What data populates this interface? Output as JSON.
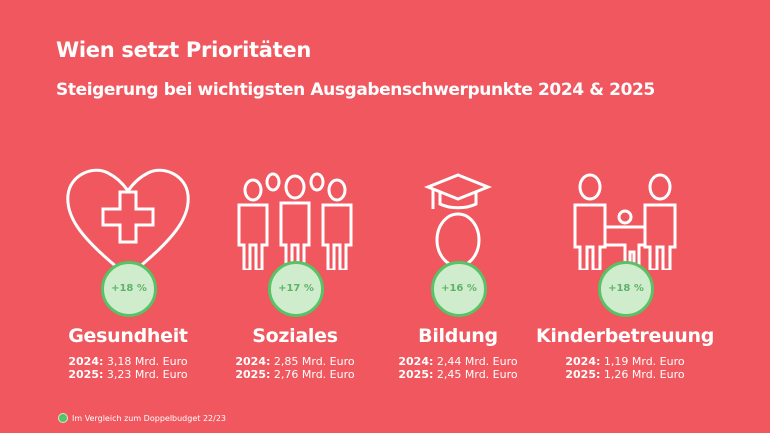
{
  "title": "Wien setzt Prioritäten",
  "subtitle": "Steigerung bei wichtigsten Ausgabenschwerpunkte 2024 & 2025",
  "colors": {
    "background": "#f0575e",
    "badge_fill": "#cfeccd",
    "badge_border": "#58c266",
    "badge_text": "#5fb26a"
  },
  "categories": [
    {
      "icon": "heart-cross-icon",
      "badge": "+18 %",
      "label": "Gesundheit",
      "y1": "2024:",
      "v1": "3,18 Mrd. Euro",
      "y2": "2025:",
      "v2": "3,23 Mrd. Euro"
    },
    {
      "icon": "people-group-icon",
      "badge": "+17 %",
      "label": "Soziales",
      "y1": "2024:",
      "v1": "2,85 Mrd. Euro",
      "y2": "2025:",
      "v2": "2,76 Mrd. Euro"
    },
    {
      "icon": "graduate-icon",
      "badge": "+16 %",
      "label": "Bildung",
      "y1": "2024:",
      "v1": "2,44 Mrd. Euro",
      "y2": "2025:",
      "v2": "2,45 Mrd. Euro"
    },
    {
      "icon": "family-icon",
      "badge": "+18 %",
      "label": "Kinderbetreuung",
      "y1": "2024:",
      "v1": "1,19 Mrd. Euro",
      "y2": "2025:",
      "v2": "1,26 Mrd. Euro"
    }
  ],
  "footnote": "Im Vergleich zum Doppelbudget 22/23"
}
